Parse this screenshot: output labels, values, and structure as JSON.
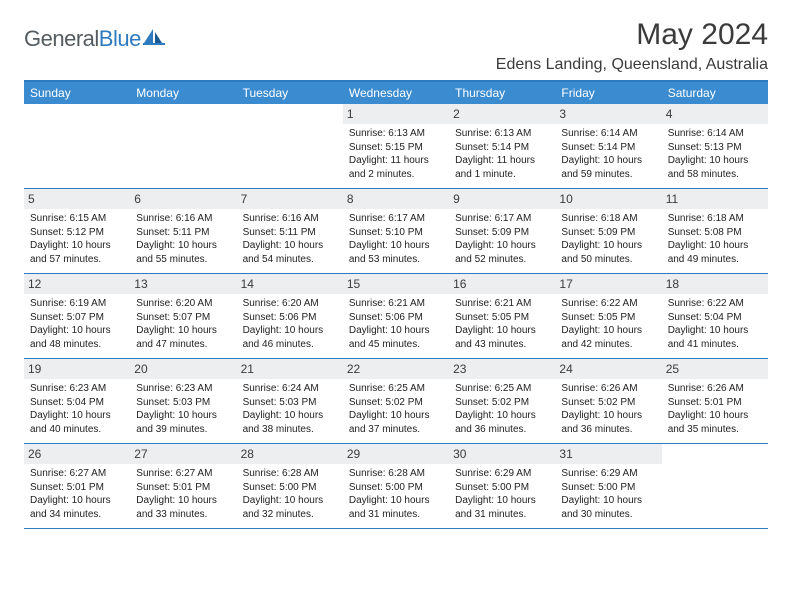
{
  "logo": {
    "text_gray": "General",
    "text_blue": "Blue"
  },
  "month_title": "May 2024",
  "location": "Edens Landing, Queensland, Australia",
  "colors": {
    "header_bar": "#3a8bd0",
    "rule": "#2f7bbf",
    "daynum_bg": "#eceeef",
    "logo_gray": "#555c61",
    "logo_blue": "#2f7bbf"
  },
  "days_of_week": [
    "Sunday",
    "Monday",
    "Tuesday",
    "Wednesday",
    "Thursday",
    "Friday",
    "Saturday"
  ],
  "weeks": [
    [
      null,
      null,
      null,
      {
        "n": "1",
        "sr": "6:13 AM",
        "ss": "5:15 PM",
        "dl": "11 hours and 2 minutes."
      },
      {
        "n": "2",
        "sr": "6:13 AM",
        "ss": "5:14 PM",
        "dl": "11 hours and 1 minute."
      },
      {
        "n": "3",
        "sr": "6:14 AM",
        "ss": "5:14 PM",
        "dl": "10 hours and 59 minutes."
      },
      {
        "n": "4",
        "sr": "6:14 AM",
        "ss": "5:13 PM",
        "dl": "10 hours and 58 minutes."
      }
    ],
    [
      {
        "n": "5",
        "sr": "6:15 AM",
        "ss": "5:12 PM",
        "dl": "10 hours and 57 minutes."
      },
      {
        "n": "6",
        "sr": "6:16 AM",
        "ss": "5:11 PM",
        "dl": "10 hours and 55 minutes."
      },
      {
        "n": "7",
        "sr": "6:16 AM",
        "ss": "5:11 PM",
        "dl": "10 hours and 54 minutes."
      },
      {
        "n": "8",
        "sr": "6:17 AM",
        "ss": "5:10 PM",
        "dl": "10 hours and 53 minutes."
      },
      {
        "n": "9",
        "sr": "6:17 AM",
        "ss": "5:09 PM",
        "dl": "10 hours and 52 minutes."
      },
      {
        "n": "10",
        "sr": "6:18 AM",
        "ss": "5:09 PM",
        "dl": "10 hours and 50 minutes."
      },
      {
        "n": "11",
        "sr": "6:18 AM",
        "ss": "5:08 PM",
        "dl": "10 hours and 49 minutes."
      }
    ],
    [
      {
        "n": "12",
        "sr": "6:19 AM",
        "ss": "5:07 PM",
        "dl": "10 hours and 48 minutes."
      },
      {
        "n": "13",
        "sr": "6:20 AM",
        "ss": "5:07 PM",
        "dl": "10 hours and 47 minutes."
      },
      {
        "n": "14",
        "sr": "6:20 AM",
        "ss": "5:06 PM",
        "dl": "10 hours and 46 minutes."
      },
      {
        "n": "15",
        "sr": "6:21 AM",
        "ss": "5:06 PM",
        "dl": "10 hours and 45 minutes."
      },
      {
        "n": "16",
        "sr": "6:21 AM",
        "ss": "5:05 PM",
        "dl": "10 hours and 43 minutes."
      },
      {
        "n": "17",
        "sr": "6:22 AM",
        "ss": "5:05 PM",
        "dl": "10 hours and 42 minutes."
      },
      {
        "n": "18",
        "sr": "6:22 AM",
        "ss": "5:04 PM",
        "dl": "10 hours and 41 minutes."
      }
    ],
    [
      {
        "n": "19",
        "sr": "6:23 AM",
        "ss": "5:04 PM",
        "dl": "10 hours and 40 minutes."
      },
      {
        "n": "20",
        "sr": "6:23 AM",
        "ss": "5:03 PM",
        "dl": "10 hours and 39 minutes."
      },
      {
        "n": "21",
        "sr": "6:24 AM",
        "ss": "5:03 PM",
        "dl": "10 hours and 38 minutes."
      },
      {
        "n": "22",
        "sr": "6:25 AM",
        "ss": "5:02 PM",
        "dl": "10 hours and 37 minutes."
      },
      {
        "n": "23",
        "sr": "6:25 AM",
        "ss": "5:02 PM",
        "dl": "10 hours and 36 minutes."
      },
      {
        "n": "24",
        "sr": "6:26 AM",
        "ss": "5:02 PM",
        "dl": "10 hours and 36 minutes."
      },
      {
        "n": "25",
        "sr": "6:26 AM",
        "ss": "5:01 PM",
        "dl": "10 hours and 35 minutes."
      }
    ],
    [
      {
        "n": "26",
        "sr": "6:27 AM",
        "ss": "5:01 PM",
        "dl": "10 hours and 34 minutes."
      },
      {
        "n": "27",
        "sr": "6:27 AM",
        "ss": "5:01 PM",
        "dl": "10 hours and 33 minutes."
      },
      {
        "n": "28",
        "sr": "6:28 AM",
        "ss": "5:00 PM",
        "dl": "10 hours and 32 minutes."
      },
      {
        "n": "29",
        "sr": "6:28 AM",
        "ss": "5:00 PM",
        "dl": "10 hours and 31 minutes."
      },
      {
        "n": "30",
        "sr": "6:29 AM",
        "ss": "5:00 PM",
        "dl": "10 hours and 31 minutes."
      },
      {
        "n": "31",
        "sr": "6:29 AM",
        "ss": "5:00 PM",
        "dl": "10 hours and 30 minutes."
      },
      null
    ]
  ],
  "labels": {
    "sunrise_prefix": "Sunrise: ",
    "sunset_prefix": "Sunset: ",
    "daylight_prefix": "Daylight: "
  }
}
